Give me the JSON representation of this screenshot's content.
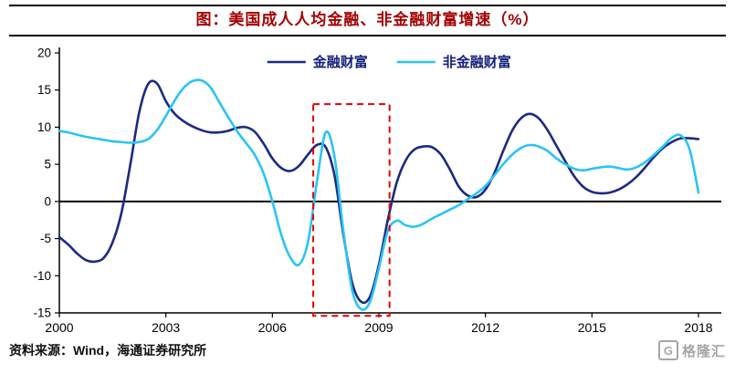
{
  "header": {
    "title": "图：美国成人人均金融、非金融财富增速（%）",
    "title_color": "#a30000"
  },
  "footer": {
    "source": "资料来源：Wind，海通证券研究所",
    "logo_letter": "G",
    "logo_text": "格隆汇"
  },
  "chart_data": {
    "type": "line",
    "title": "美国成人人均金融、非金融财富增速（%）",
    "xlabel": "",
    "ylabel": "",
    "xlim": [
      2000,
      2018
    ],
    "ylim": [
      -15,
      20
    ],
    "x_ticks": [
      2000,
      2003,
      2006,
      2009,
      2012,
      2015,
      2018
    ],
    "y_ticks": [
      20,
      15,
      10,
      5,
      0,
      -5,
      -10,
      -15
    ],
    "grid": false,
    "legend_position": "top-center",
    "legend_text_color": "#14207a",
    "axis_color": "#000000",
    "x_start": 2000,
    "x_step": 0.25,
    "series": [
      {
        "name": "金融财富",
        "color": "#1b2a80",
        "values": [
          -4.8,
          -5.8,
          -7,
          -7.9,
          -8.1,
          -7.6,
          -5.5,
          -1.5,
          5,
          12,
          15.8,
          15.9,
          13.5,
          11.8,
          10.8,
          10.1,
          9.6,
          9.3,
          9.3,
          9.5,
          9.9,
          10,
          9.4,
          7.8,
          5.8,
          4.5,
          4.1,
          4.8,
          6.3,
          7.6,
          7.3,
          3.5,
          -4.5,
          -11,
          -13.5,
          -12.8,
          -8.5,
          -2.5,
          2.5,
          5.5,
          7,
          7.4,
          7.3,
          6.3,
          4.3,
          2,
          0.8,
          0.6,
          1.6,
          3.8,
          6.8,
          9.5,
          11.2,
          11.8,
          11.2,
          9.6,
          7.5,
          5.4,
          3.4,
          2,
          1.3,
          1.1,
          1.2,
          1.6,
          2.3,
          3.3,
          4.6,
          6,
          7.2,
          8,
          8.5,
          8.5,
          8.4
        ]
      },
      {
        "name": "非金融财富",
        "color": "#29c4f5",
        "values": [
          9.5,
          9.3,
          9,
          8.7,
          8.5,
          8.3,
          8.1,
          8,
          7.9,
          8,
          8.4,
          9.6,
          11.5,
          13.6,
          15.3,
          16.2,
          16.3,
          15.4,
          13.4,
          11.4,
          9.5,
          7.9,
          6.3,
          3.8,
          0,
          -4.5,
          -7.5,
          -8.5,
          -5.5,
          2.5,
          9.3,
          6,
          -4,
          -12,
          -14.5,
          -13.5,
          -9,
          -4,
          -2.6,
          -3.2,
          -3.4,
          -3,
          -2.3,
          -1.7,
          -1.1,
          -0.5,
          0.3,
          1.1,
          2.1,
          3.5,
          5,
          6.3,
          7.2,
          7.6,
          7.4,
          6.8,
          5.8,
          5,
          4.4,
          4.2,
          4.4,
          4.6,
          4.7,
          4.5,
          4.3,
          4.6,
          5.3,
          6.3,
          7.4,
          8.6,
          8.9,
          7,
          1.2
        ]
      }
    ],
    "highlight_box": {
      "x1": 2007.15,
      "x2": 2009.3,
      "y1": -15.4,
      "y2": 13.1,
      "color": "#e60000",
      "style": "dashed"
    }
  }
}
